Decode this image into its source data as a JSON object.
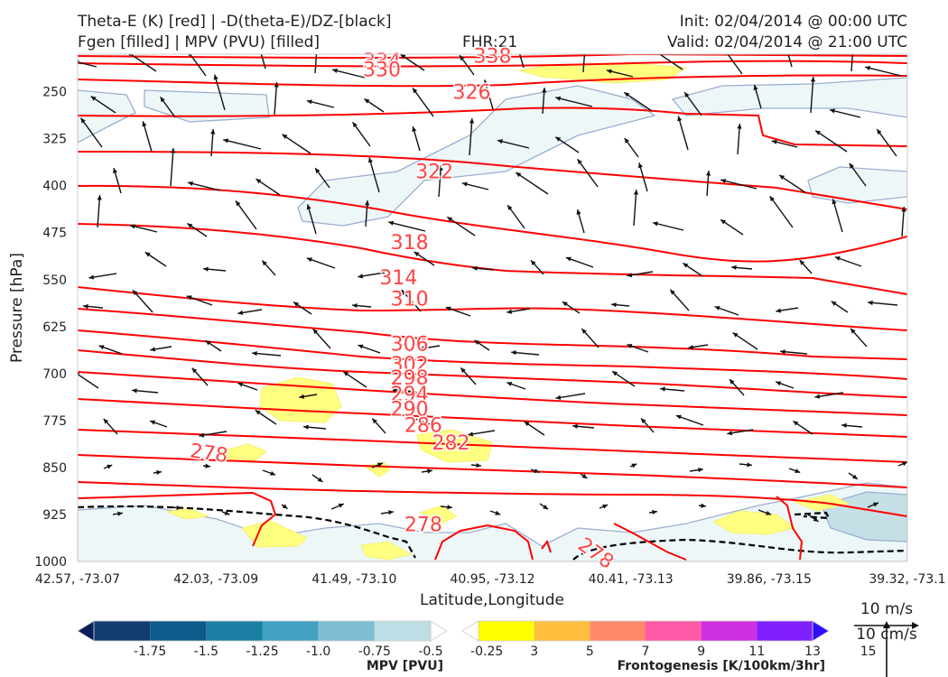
{
  "header": {
    "title_line1": "Theta-E (K) [red] | -D(theta-E)/DZ-[black]",
    "title_line2": "Fgen [filled] | MPV (PVU) [filled]",
    "fhr": "FHR:21",
    "init": "Init: 02/04/2014 @ 00:00 UTC",
    "valid": "Valid: 02/04/2014 @ 21:00 UTC"
  },
  "colors": {
    "theta_e": "#ff0000",
    "stability": "#000000",
    "mpv_fill": "#eef7f8",
    "mpv_fill_strong": "#c4dfe6",
    "mpv_edge": "#9aaed0",
    "fgen_fill": "#ffff80",
    "contour_label": "#ff4444"
  },
  "chart_data": {
    "type": "cross-section",
    "xlabel": "Latitude,Longitude",
    "ylabel": "Pressure [hPa]",
    "x_ticks": [
      "42.57, -73.07",
      "42.03, -73.09",
      "41.49, -73.10",
      "40.95, -73.12",
      "40.41, -73.13",
      "39.86, -73.15",
      "39.32, -73.1"
    ],
    "y_ticks": [
      250,
      325,
      400,
      475,
      550,
      625,
      700,
      775,
      850,
      925,
      1000
    ],
    "ylim": [
      1000,
      190
    ],
    "xlim": [
      0,
      6
    ],
    "grid": false,
    "theta_e_labels": [
      {
        "value": 338,
        "x": 3.0,
        "p": 192
      },
      {
        "value": 334,
        "x": 2.2,
        "p": 200
      },
      {
        "value": 330,
        "x": 2.2,
        "p": 214
      },
      {
        "value": 326,
        "x": 2.85,
        "p": 250
      },
      {
        "value": 322,
        "x": 2.58,
        "p": 377
      },
      {
        "value": 318,
        "x": 2.4,
        "p": 490
      },
      {
        "value": 314,
        "x": 2.32,
        "p": 546
      },
      {
        "value": 310,
        "x": 2.4,
        "p": 580
      },
      {
        "value": 306,
        "x": 2.4,
        "p": 652
      },
      {
        "value": 302,
        "x": 2.4,
        "p": 684
      },
      {
        "value": 298,
        "x": 2.4,
        "p": 706
      },
      {
        "value": 294,
        "x": 2.4,
        "p": 732
      },
      {
        "value": 290,
        "x": 2.4,
        "p": 756
      },
      {
        "value": 286,
        "x": 2.5,
        "p": 782
      },
      {
        "value": 282,
        "x": 2.7,
        "p": 810
      },
      {
        "value": 278,
        "x": 0.95,
        "p": 826
      },
      {
        "value": 278,
        "x": 2.5,
        "p": 940
      },
      {
        "value": 278,
        "x": 3.75,
        "p": 986
      }
    ],
    "legend": [
      {
        "name": "MPV [PVU]",
        "labels": [
          "-1.75",
          "-1.5",
          "-1.25",
          "-1.0",
          "-0.75",
          "-0.5",
          "-0.25"
        ],
        "colors": [
          "#0a1f5c",
          "#143d73",
          "#0c5b8a",
          "#1b7fa3",
          "#42a1c2",
          "#7ebdd4",
          "#bedee6",
          "#ffffff"
        ]
      },
      {
        "name": "Frontogenesis [K/100km/3hr]",
        "labels": [
          "3",
          "5",
          "7",
          "9",
          "11",
          "13",
          "15"
        ],
        "colors": [
          "#ffffff",
          "#ffff00",
          "#ffc040",
          "#ff8a6a",
          "#ff5aa8",
          "#cc30e0",
          "#8020ff",
          "#3010ff"
        ]
      }
    ],
    "vector_scale": {
      "label_x": "10 m/s",
      "label_y": "10 cm/s"
    }
  }
}
